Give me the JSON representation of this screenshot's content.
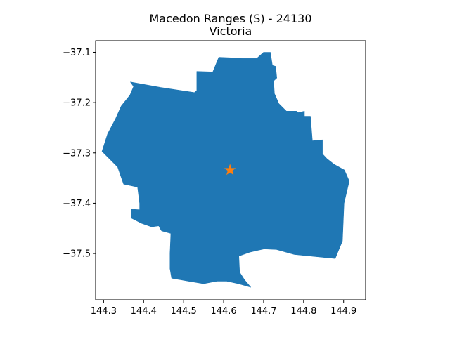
{
  "figure": {
    "title_line1": "Macedon Ranges (S) - 24130",
    "title_line2": "Victoria"
  },
  "chart_data": {
    "type": "map",
    "xlim": [
      144.28,
      144.955
    ],
    "ylim": [
      -37.592,
      -37.077
    ],
    "x_ticks": [
      144.3,
      144.4,
      144.5,
      144.6,
      144.7,
      144.8,
      144.9
    ],
    "x_tick_labels": [
      "144.3",
      "144.4",
      "144.5",
      "144.6",
      "144.7",
      "144.8",
      "144.9"
    ],
    "y_ticks": [
      -37.1,
      -37.2,
      -37.3,
      -37.4,
      -37.5
    ],
    "y_tick_labels": [
      "−37.1",
      "−37.2",
      "−37.3",
      "−37.4",
      "−37.5"
    ],
    "grid": false,
    "region": {
      "color": "#1f77b4",
      "boundary": [
        [
          144.367,
          -37.159
        ],
        [
          144.443,
          -37.17
        ],
        [
          144.527,
          -37.18
        ],
        [
          144.533,
          -37.176
        ],
        [
          144.533,
          -37.138
        ],
        [
          144.573,
          -37.139
        ],
        [
          144.588,
          -37.11
        ],
        [
          144.648,
          -37.112
        ],
        [
          144.683,
          -37.112
        ],
        [
          144.7,
          -37.1
        ],
        [
          144.717,
          -37.1
        ],
        [
          144.722,
          -37.126
        ],
        [
          144.73,
          -37.128
        ],
        [
          144.733,
          -37.151
        ],
        [
          144.725,
          -37.157
        ],
        [
          144.727,
          -37.182
        ],
        [
          144.738,
          -37.202
        ],
        [
          144.757,
          -37.217
        ],
        [
          144.782,
          -37.217
        ],
        [
          144.787,
          -37.22
        ],
        [
          144.802,
          -37.217
        ],
        [
          144.802,
          -37.227
        ],
        [
          144.817,
          -37.227
        ],
        [
          144.822,
          -37.276
        ],
        [
          144.847,
          -37.274
        ],
        [
          144.847,
          -37.302
        ],
        [
          144.859,
          -37.312
        ],
        [
          144.877,
          -37.323
        ],
        [
          144.902,
          -37.334
        ],
        [
          144.914,
          -37.356
        ],
        [
          144.901,
          -37.4
        ],
        [
          144.897,
          -37.475
        ],
        [
          144.884,
          -37.5
        ],
        [
          144.879,
          -37.51
        ],
        [
          144.777,
          -37.502
        ],
        [
          144.732,
          -37.492
        ],
        [
          144.701,
          -37.491
        ],
        [
          144.683,
          -37.494
        ],
        [
          144.667,
          -37.497
        ],
        [
          144.638,
          -37.505
        ],
        [
          144.64,
          -37.537
        ],
        [
          144.652,
          -37.552
        ],
        [
          144.668,
          -37.567
        ],
        [
          144.637,
          -37.56
        ],
        [
          144.608,
          -37.555
        ],
        [
          144.583,
          -37.555
        ],
        [
          144.55,
          -37.56
        ],
        [
          144.512,
          -37.555
        ],
        [
          144.47,
          -37.549
        ],
        [
          144.466,
          -37.53
        ],
        [
          144.466,
          -37.5
        ],
        [
          144.468,
          -37.46
        ],
        [
          144.445,
          -37.455
        ],
        [
          144.441,
          -37.45
        ],
        [
          144.438,
          -37.445
        ],
        [
          144.42,
          -37.447
        ],
        [
          144.395,
          -37.44
        ],
        [
          144.37,
          -37.43
        ],
        [
          144.37,
          -37.412
        ],
        [
          144.39,
          -37.413
        ],
        [
          144.39,
          -37.4
        ],
        [
          144.385,
          -37.368
        ],
        [
          144.35,
          -37.362
        ],
        [
          144.335,
          -37.328
        ],
        [
          144.296,
          -37.297
        ],
        [
          144.31,
          -37.262
        ],
        [
          144.33,
          -37.232
        ],
        [
          144.344,
          -37.207
        ],
        [
          144.366,
          -37.185
        ],
        [
          144.375,
          -37.168
        ]
      ]
    },
    "marker": {
      "shape": "star",
      "color": "#ff7f0e",
      "x": 144.616,
      "y": -37.334
    }
  }
}
